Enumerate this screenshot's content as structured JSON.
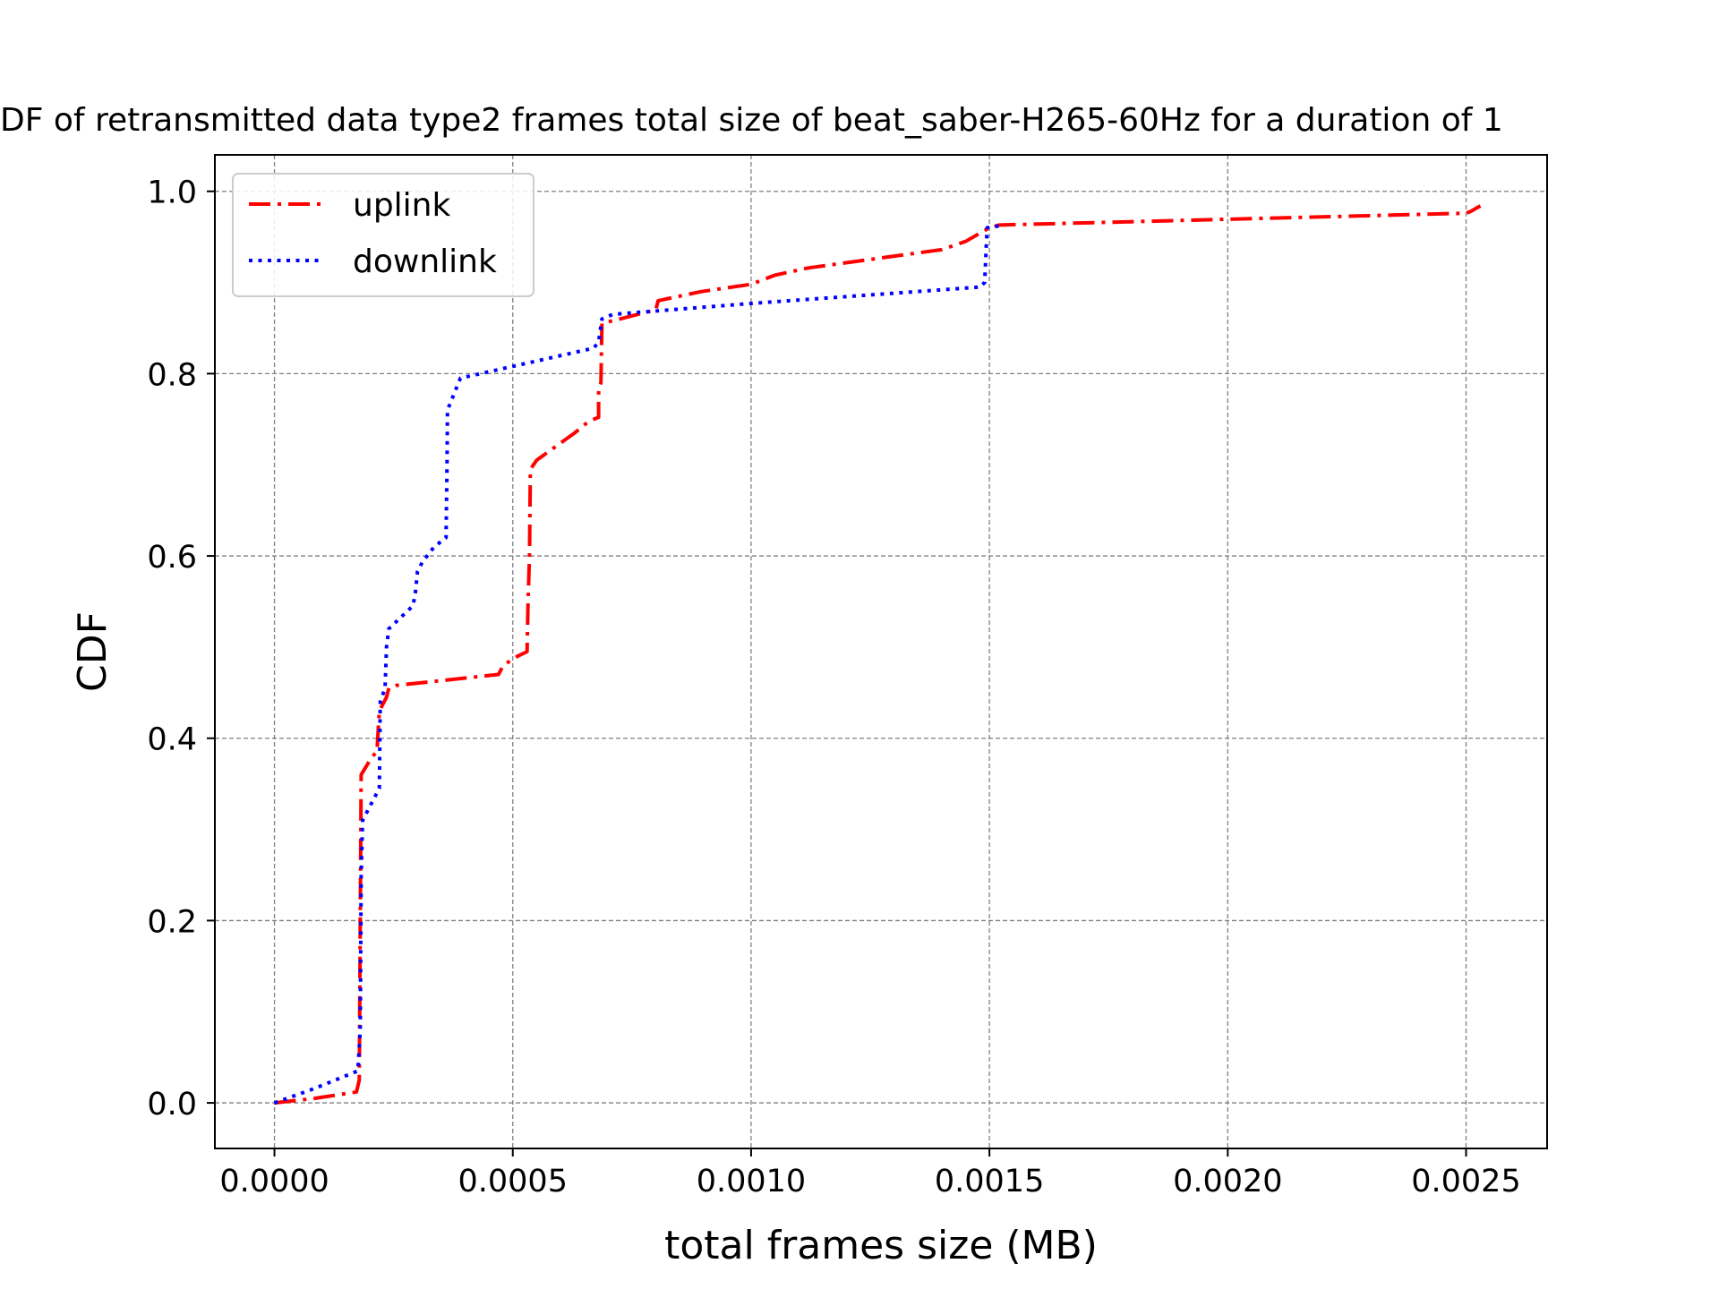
{
  "chart_data": {
    "type": "line",
    "title": "DF of retransmitted data type2 frames total size of beat_saber-H265-60Hz for a duration of 1",
    "xlabel": "total frames size (MB)",
    "ylabel": "CDF",
    "xlim": [
      -0.000125,
      0.00267
    ],
    "ylim": [
      -0.05,
      1.04
    ],
    "xticks": [
      0.0,
      0.0005,
      0.001,
      0.0015,
      0.002,
      0.0025
    ],
    "xtick_labels": [
      "0.0000",
      "0.0005",
      "0.0010",
      "0.0015",
      "0.0020",
      "0.0025"
    ],
    "yticks": [
      0.0,
      0.2,
      0.4,
      0.6,
      0.8,
      1.0
    ],
    "ytick_labels": [
      "0.0",
      "0.2",
      "0.4",
      "0.6",
      "0.8",
      "1.0"
    ],
    "grid": true,
    "legend_position": "top-left",
    "series": [
      {
        "name": "uplink",
        "color": "#ff0000",
        "style": "dashdot",
        "points": [
          [
            0.0,
            0.0
          ],
          [
            8.5e-05,
            0.005
          ],
          [
            0.000172,
            0.012
          ],
          [
            0.000178,
            0.025
          ],
          [
            0.00018,
            0.2
          ],
          [
            0.000182,
            0.36
          ],
          [
            0.000205,
            0.38
          ],
          [
            0.000215,
            0.385
          ],
          [
            0.00022,
            0.43
          ],
          [
            0.000235,
            0.445
          ],
          [
            0.00024,
            0.455
          ],
          [
            0.000255,
            0.458
          ],
          [
            0.00047,
            0.47
          ],
          [
            0.00048,
            0.48
          ],
          [
            0.00051,
            0.49
          ],
          [
            0.00053,
            0.495
          ],
          [
            0.000532,
            0.55
          ],
          [
            0.000535,
            0.6
          ],
          [
            0.000537,
            0.695
          ],
          [
            0.00055,
            0.705
          ],
          [
            0.00063,
            0.735
          ],
          [
            0.00066,
            0.748
          ],
          [
            0.00068,
            0.752
          ],
          [
            0.00068,
            0.785
          ],
          [
            0.000685,
            0.79
          ],
          [
            0.000687,
            0.855
          ],
          [
            0.0008,
            0.87
          ],
          [
            0.000805,
            0.88
          ],
          [
            0.000895,
            0.89
          ],
          [
            0.001,
            0.898
          ],
          [
            0.00105,
            0.908
          ],
          [
            0.00112,
            0.916
          ],
          [
            0.0014,
            0.936
          ],
          [
            0.00145,
            0.945
          ],
          [
            0.0015,
            0.96
          ],
          [
            0.00152,
            0.963
          ],
          [
            0.0025,
            0.976
          ],
          [
            0.00251,
            0.978
          ],
          [
            0.00253,
            0.984
          ]
        ]
      },
      {
        "name": "downlink",
        "color": "#0000ff",
        "style": "dotted",
        "points": [
          [
            0.0,
            0.0
          ],
          [
            8e-05,
            0.015
          ],
          [
            0.000175,
            0.035
          ],
          [
            0.00018,
            0.08
          ],
          [
            0.000182,
            0.25
          ],
          [
            0.000185,
            0.31
          ],
          [
            0.00021,
            0.335
          ],
          [
            0.00022,
            0.345
          ],
          [
            0.000222,
            0.44
          ],
          [
            0.000232,
            0.455
          ],
          [
            0.000235,
            0.5
          ],
          [
            0.00024,
            0.52
          ],
          [
            0.00029,
            0.545
          ],
          [
            0.000295,
            0.556
          ],
          [
            0.0003,
            0.583
          ],
          [
            0.00031,
            0.593
          ],
          [
            0.000335,
            0.61
          ],
          [
            0.00036,
            0.62
          ],
          [
            0.000362,
            0.7
          ],
          [
            0.000363,
            0.76
          ],
          [
            0.00039,
            0.795
          ],
          [
            0.0005,
            0.808
          ],
          [
            0.00067,
            0.828
          ],
          [
            0.00068,
            0.835
          ],
          [
            0.000687,
            0.86
          ],
          [
            0.00071,
            0.865
          ],
          [
            0.001,
            0.877
          ],
          [
            0.00148,
            0.895
          ],
          [
            0.00149,
            0.9
          ],
          [
            0.001495,
            0.96
          ],
          [
            0.00152,
            0.962
          ]
        ]
      }
    ]
  }
}
